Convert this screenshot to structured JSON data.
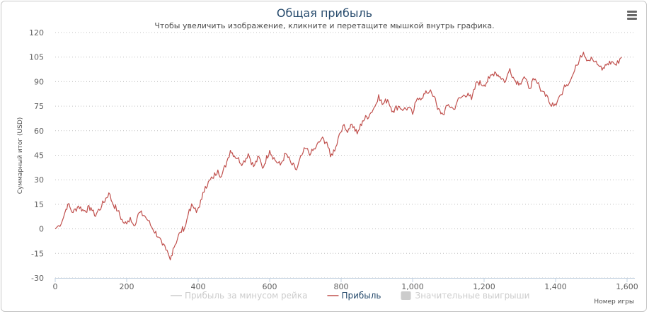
{
  "chart_data": {
    "type": "line",
    "title": "Общая прибыль",
    "subtitle": "Чтобы увеличить изображение, кликните и перетащите мышкой внутрь графика.",
    "xlabel": "Номер игры",
    "ylabel": "Суммарный итог (USD)",
    "xlim": [
      0,
      1600
    ],
    "ylim": [
      -30,
      120
    ],
    "x_ticks": [
      0,
      200,
      400,
      600,
      800,
      1000,
      1200,
      1400,
      1600
    ],
    "x_tick_labels": [
      "0",
      "200",
      "400",
      "600",
      "800",
      "1,000",
      "1,200",
      "1,400",
      "1,600"
    ],
    "y_ticks": [
      120,
      105,
      90,
      75,
      60,
      45,
      30,
      15,
      0,
      -15,
      -30
    ],
    "y_tick_labels": [
      "120",
      "105",
      "90",
      "75",
      "60",
      "45",
      "30",
      "15",
      "0",
      "-15",
      "-30"
    ],
    "grid": "horizontal-dotted",
    "legend_position": "bottom-center",
    "legend": [
      {
        "label": "Прибыль за минусом рейка",
        "color": "#cccccc",
        "enabled": false,
        "symbol": "line"
      },
      {
        "label": "Прибыль",
        "color": "#c0504d",
        "enabled": true,
        "symbol": "line"
      },
      {
        "label": "Значительные выигрыши",
        "color": "#cccccc",
        "enabled": false,
        "symbol": "box"
      }
    ],
    "series": [
      {
        "name": "Прибыль",
        "color": "#c0504d",
        "points": [
          [
            0,
            0
          ],
          [
            10,
            2
          ],
          [
            20,
            5
          ],
          [
            30,
            12
          ],
          [
            35,
            15
          ],
          [
            50,
            10
          ],
          [
            65,
            14
          ],
          [
            80,
            11
          ],
          [
            100,
            13
          ],
          [
            110,
            8
          ],
          [
            130,
            14
          ],
          [
            150,
            22
          ],
          [
            160,
            16
          ],
          [
            175,
            11
          ],
          [
            190,
            4
          ],
          [
            200,
            3
          ],
          [
            210,
            7
          ],
          [
            220,
            2
          ],
          [
            235,
            10
          ],
          [
            250,
            8
          ],
          [
            260,
            5
          ],
          [
            270,
            1
          ],
          [
            290,
            -5
          ],
          [
            300,
            -10
          ],
          [
            310,
            -13
          ],
          [
            322,
            -19
          ],
          [
            330,
            -12
          ],
          [
            350,
            -2
          ],
          [
            365,
            2
          ],
          [
            375,
            12
          ],
          [
            385,
            14
          ],
          [
            395,
            10
          ],
          [
            410,
            18
          ],
          [
            420,
            26
          ],
          [
            440,
            31
          ],
          [
            455,
            36
          ],
          [
            465,
            32
          ],
          [
            480,
            41
          ],
          [
            490,
            48
          ],
          [
            510,
            43
          ],
          [
            525,
            40
          ],
          [
            540,
            46
          ],
          [
            555,
            38
          ],
          [
            570,
            44
          ],
          [
            580,
            37
          ],
          [
            600,
            48
          ],
          [
            615,
            42
          ],
          [
            630,
            39
          ],
          [
            645,
            46
          ],
          [
            660,
            40
          ],
          [
            675,
            36
          ],
          [
            690,
            45
          ],
          [
            700,
            49
          ],
          [
            715,
            46
          ],
          [
            730,
            50
          ],
          [
            745,
            55
          ],
          [
            760,
            53
          ],
          [
            770,
            44
          ],
          [
            785,
            50
          ],
          [
            795,
            58
          ],
          [
            805,
            63
          ],
          [
            815,
            60
          ],
          [
            830,
            64
          ],
          [
            845,
            58
          ],
          [
            860,
            66
          ],
          [
            880,
            70
          ],
          [
            895,
            75
          ],
          [
            905,
            82
          ],
          [
            915,
            76
          ],
          [
            930,
            79
          ],
          [
            945,
            72
          ],
          [
            960,
            75
          ],
          [
            975,
            73
          ],
          [
            990,
            74
          ],
          [
            1000,
            70
          ],
          [
            1010,
            78
          ],
          [
            1020,
            80
          ],
          [
            1040,
            83
          ],
          [
            1050,
            85
          ],
          [
            1060,
            81
          ],
          [
            1070,
            73
          ],
          [
            1085,
            70
          ],
          [
            1100,
            76
          ],
          [
            1115,
            73
          ],
          [
            1125,
            78
          ],
          [
            1140,
            81
          ],
          [
            1155,
            83
          ],
          [
            1165,
            79
          ],
          [
            1180,
            90
          ],
          [
            1200,
            88
          ],
          [
            1215,
            92
          ],
          [
            1230,
            96
          ],
          [
            1245,
            93
          ],
          [
            1260,
            90
          ],
          [
            1272,
            98
          ],
          [
            1285,
            91
          ],
          [
            1300,
            89
          ],
          [
            1312,
            93
          ],
          [
            1325,
            86
          ],
          [
            1340,
            91
          ],
          [
            1355,
            87
          ],
          [
            1365,
            84
          ],
          [
            1375,
            82
          ],
          [
            1385,
            76
          ],
          [
            1395,
            75
          ],
          [
            1405,
            78
          ],
          [
            1415,
            82
          ],
          [
            1425,
            88
          ],
          [
            1440,
            90
          ],
          [
            1450,
            95
          ],
          [
            1460,
            100
          ],
          [
            1470,
            106
          ],
          [
            1478,
            108
          ],
          [
            1490,
            103
          ],
          [
            1500,
            105
          ],
          [
            1510,
            102
          ],
          [
            1520,
            100
          ],
          [
            1530,
            97
          ],
          [
            1545,
            101
          ],
          [
            1560,
            102
          ],
          [
            1570,
            100
          ],
          [
            1580,
            104
          ],
          [
            1585,
            105
          ]
        ]
      }
    ]
  }
}
